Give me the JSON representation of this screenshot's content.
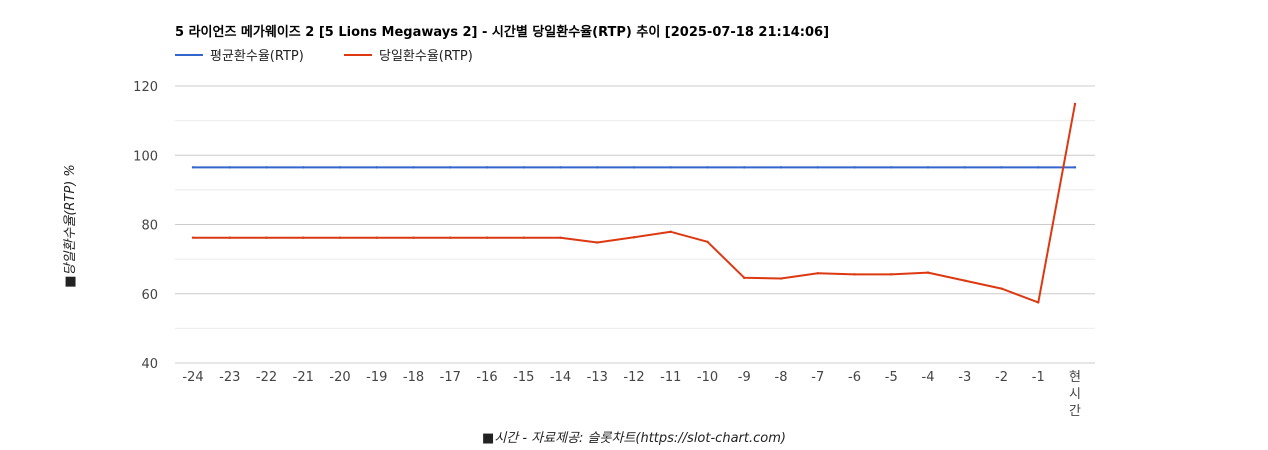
{
  "chart_data": {
    "type": "line",
    "title": "5 라이언즈 메가웨이즈 2 [5 Lions Megaways 2] - 시간별 당일환수율(RTP) 추이 [2025-07-18 21:14:06]",
    "xlabel": "■시간 - 자료제공: 슬롯차트(https://slot-chart.com)",
    "ylabel": "■당일환수율(RTP) %",
    "categories": [
      "-24",
      "-23",
      "-22",
      "-21",
      "-20",
      "-19",
      "-18",
      "-17",
      "-16",
      "-15",
      "-14",
      "-13",
      "-12",
      "-11",
      "-10",
      "-9",
      "-8",
      "-7",
      "-6",
      "-5",
      "-4",
      "-3",
      "-2",
      "-1",
      "현시간"
    ],
    "ylim": [
      40,
      120
    ],
    "yticks": [
      40,
      60,
      80,
      100,
      120
    ],
    "grid": true,
    "legend_position": "top-left",
    "series": [
      {
        "name": "평균환수율(RTP)",
        "color": "#3366cc",
        "values": [
          96.5,
          96.5,
          96.5,
          96.5,
          96.5,
          96.5,
          96.5,
          96.5,
          96.5,
          96.5,
          96.5,
          96.5,
          96.5,
          96.5,
          96.5,
          96.5,
          96.5,
          96.5,
          96.5,
          96.5,
          96.5,
          96.5,
          96.5,
          96.5,
          96.5
        ]
      },
      {
        "name": "당일환수율(RTP)",
        "color": "#dc3912",
        "values": [
          76.2,
          76.2,
          76.2,
          76.2,
          76.2,
          76.2,
          76.2,
          76.2,
          76.2,
          76.2,
          76.2,
          74.8,
          76.3,
          77.9,
          75.0,
          64.6,
          64.4,
          65.9,
          65.6,
          65.6,
          66.1,
          63.8,
          61.5,
          57.5,
          114.8
        ]
      }
    ]
  }
}
